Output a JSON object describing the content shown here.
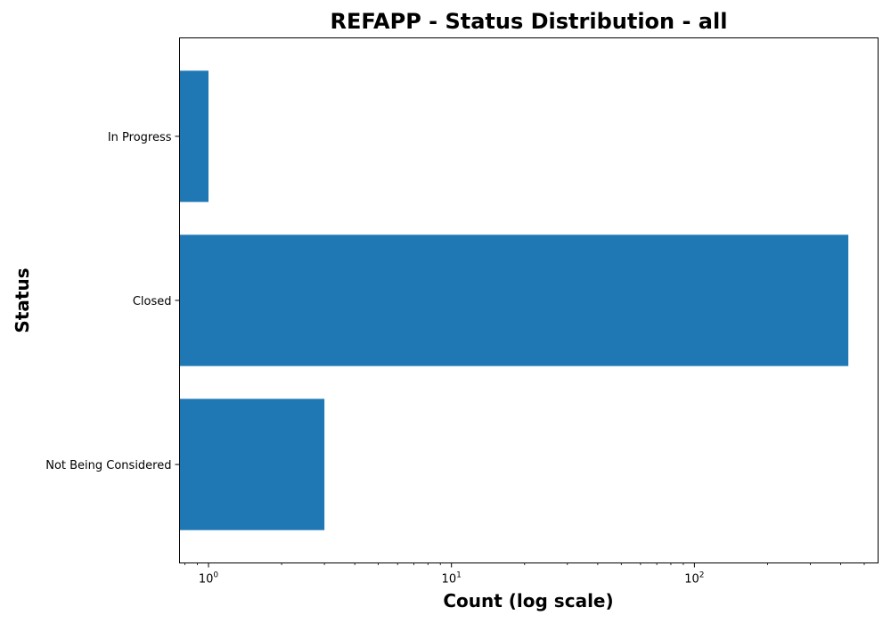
{
  "chart_data": {
    "type": "bar",
    "orientation": "horizontal",
    "title": "REFAPP - Status Distribution - all",
    "xlabel": "Count (log scale)",
    "ylabel": "Status",
    "x_scale": "log",
    "xlim": [
      0.76,
      570
    ],
    "x_ticks": [
      {
        "base": "10",
        "exp": "0",
        "value": 1
      },
      {
        "base": "10",
        "exp": "1",
        "value": 10
      },
      {
        "base": "10",
        "exp": "2",
        "value": 100
      }
    ],
    "categories": [
      "In Progress",
      "Closed",
      "Not Being Considered"
    ],
    "values": [
      1,
      430,
      3
    ],
    "bar_color": "#1f77b4",
    "grid": false
  }
}
